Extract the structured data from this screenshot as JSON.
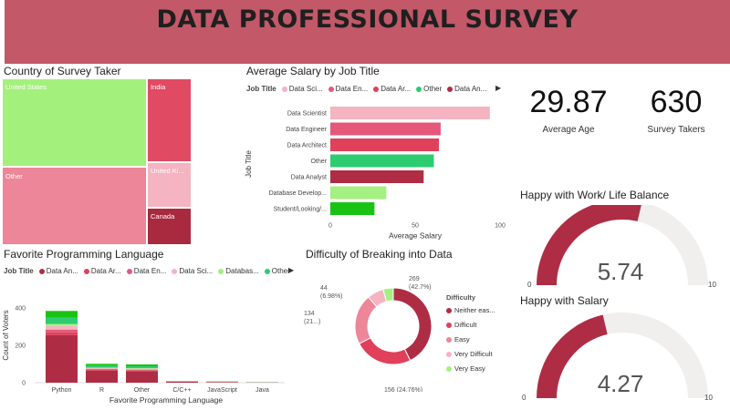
{
  "header": {
    "title": "DATA PROFESSIONAL SURVEY"
  },
  "colors": {
    "header_bg": "#c25868",
    "data_analyst": "#ae2d45",
    "data_architect": "#e0405a",
    "data_engineer": "#e4587a",
    "data_scientist": "#f4b4c2",
    "database_dev": "#a4f080",
    "other": "#2ecc71",
    "student": "#19c313"
  },
  "treemap": {
    "title": "Country of Survey Taker",
    "cells": [
      {
        "label": "United States",
        "color": "#a4f07c"
      },
      {
        "label": "Other",
        "color": "#ec8698"
      },
      {
        "label": "India",
        "color": "#e04a63"
      },
      {
        "label": "United Ki...",
        "color": "#f4b4c2"
      },
      {
        "label": "Canada",
        "color": "#a92a3e"
      }
    ]
  },
  "kpis": [
    {
      "value": "29.87",
      "label": "Average Age"
    },
    {
      "value": "630",
      "label": "Survey Takers"
    }
  ],
  "salary_chart": {
    "title": "Average Salary by Job Title",
    "legend_label": "Job Title",
    "legend_items": [
      {
        "label": "Data Sci...",
        "color": "#f4b4c2"
      },
      {
        "label": "Data En...",
        "color": "#e4587a"
      },
      {
        "label": "Data Ar...",
        "color": "#e0405a"
      },
      {
        "label": "Other",
        "color": "#2ecc71"
      },
      {
        "label": "Data An...",
        "color": "#ae2d45"
      }
    ],
    "ylabel": "Job Title",
    "xlabel": "Average Salary"
  },
  "language_chart": {
    "title": "Favorite Programming Language",
    "legend_label": "Job Title",
    "legend_items": [
      {
        "label": "Data An...",
        "color": "#ae2d45"
      },
      {
        "label": "Data Ar...",
        "color": "#e0405a"
      },
      {
        "label": "Data En...",
        "color": "#e4587a"
      },
      {
        "label": "Data Sci...",
        "color": "#f4b4c2"
      },
      {
        "label": "Databas...",
        "color": "#a4f080"
      },
      {
        "label": "Other",
        "color": "#2ecc71"
      }
    ],
    "ylabel": "Count of Voters",
    "xlabel": "Favorite Programming Language"
  },
  "difficulty_chart": {
    "title": "Difficulty of Breaking into Data",
    "legend_label": "Difficulty",
    "legend_items": [
      {
        "label": "Neither eas...",
        "color": "#ae2d45"
      },
      {
        "label": "Difficult",
        "color": "#e0405a"
      },
      {
        "label": "Easy",
        "color": "#ec8698"
      },
      {
        "label": "Very Difficult",
        "color": "#f4b4c2"
      },
      {
        "label": "Very Easy",
        "color": "#a4f080"
      }
    ]
  },
  "gauges": [
    {
      "title": "Happy with Work/ Life Balance",
      "value_text": "5.74",
      "min_label": "0",
      "max_label": "10"
    },
    {
      "title": "Happy with Salary",
      "value_text": "4.27",
      "min_label": "0",
      "max_label": "10"
    }
  ],
  "chart_data": [
    {
      "type": "bar",
      "orientation": "horizontal",
      "title": "Average Salary by Job Title",
      "categories": [
        "Data Scientist",
        "Data Engineer",
        "Data Architect",
        "Other",
        "Data Analyst",
        "Database Develop...",
        "Student/Looking/..."
      ],
      "values": [
        94,
        65,
        64,
        61,
        55,
        33,
        26
      ],
      "colors": [
        "#f4b4c2",
        "#e4587a",
        "#e0405a",
        "#2ecc71",
        "#ae2d45",
        "#a4f080",
        "#19c313"
      ],
      "xlabel": "Average Salary",
      "ylabel": "Job Title",
      "xticks": [
        "0",
        "50",
        "100"
      ],
      "xlim": [
        0,
        100
      ]
    },
    {
      "type": "bar",
      "stacked": true,
      "title": "Favorite Programming Language",
      "categories": [
        "Python",
        "R",
        "Other",
        "C/C++",
        "JavaScript",
        "Java"
      ],
      "series": [
        {
          "name": "Data An...",
          "color": "#ae2d45",
          "values": [
            255,
            65,
            62,
            5,
            3,
            1
          ]
        },
        {
          "name": "Data Ar...",
          "color": "#e0405a",
          "values": [
            15,
            4,
            3,
            1,
            0,
            0
          ]
        },
        {
          "name": "Data En...",
          "color": "#e4587a",
          "values": [
            15,
            5,
            5,
            1,
            1,
            1
          ]
        },
        {
          "name": "Data Sci...",
          "color": "#f4b4c2",
          "values": [
            20,
            4,
            5,
            1,
            0,
            0
          ]
        },
        {
          "name": "Databas...",
          "color": "#a4f080",
          "values": [
            10,
            3,
            3,
            0,
            1,
            0
          ]
        },
        {
          "name": "Other",
          "color": "#2ecc71",
          "values": [
            35,
            10,
            10,
            1,
            1,
            1
          ]
        },
        {
          "name": "",
          "color": "#19c313",
          "values": [
            35,
            10,
            10,
            0,
            1,
            0
          ]
        }
      ],
      "yticks": [
        "0",
        "200",
        "400"
      ],
      "ylim": [
        0,
        450
      ],
      "xlabel": "Favorite Programming Language",
      "ylabel": "Count of Voters"
    },
    {
      "type": "pie",
      "donut": true,
      "title": "Difficulty of Breaking into Data",
      "slices": [
        {
          "label": "Neither eas...",
          "value": 269,
          "percent": 42.7,
          "text": "269\n(42.7%)",
          "color": "#ae2d45"
        },
        {
          "label": "Difficult",
          "value": 156,
          "percent": 24.76,
          "text": "156 (24.76%)",
          "color": "#e0405a"
        },
        {
          "label": "Easy",
          "value": 134,
          "percent": 21.27,
          "text": "134\n(21...)",
          "color": "#ec8698"
        },
        {
          "label": "Very Difficult",
          "value": 44,
          "percent": 6.98,
          "text": "44\n(6.98%)",
          "color": "#f4b4c2"
        },
        {
          "label": "Very Easy",
          "value": 27,
          "percent": 4.29,
          "text": "",
          "color": "#a4f080"
        }
      ]
    },
    {
      "type": "gauge",
      "title": "Happy with Work/ Life Balance",
      "value": 5.74,
      "min": 0,
      "max": 10,
      "color": "#ae2d45"
    },
    {
      "type": "gauge",
      "title": "Happy with Salary",
      "value": 4.27,
      "min": 0,
      "max": 10,
      "color": "#ae2d45"
    }
  ]
}
